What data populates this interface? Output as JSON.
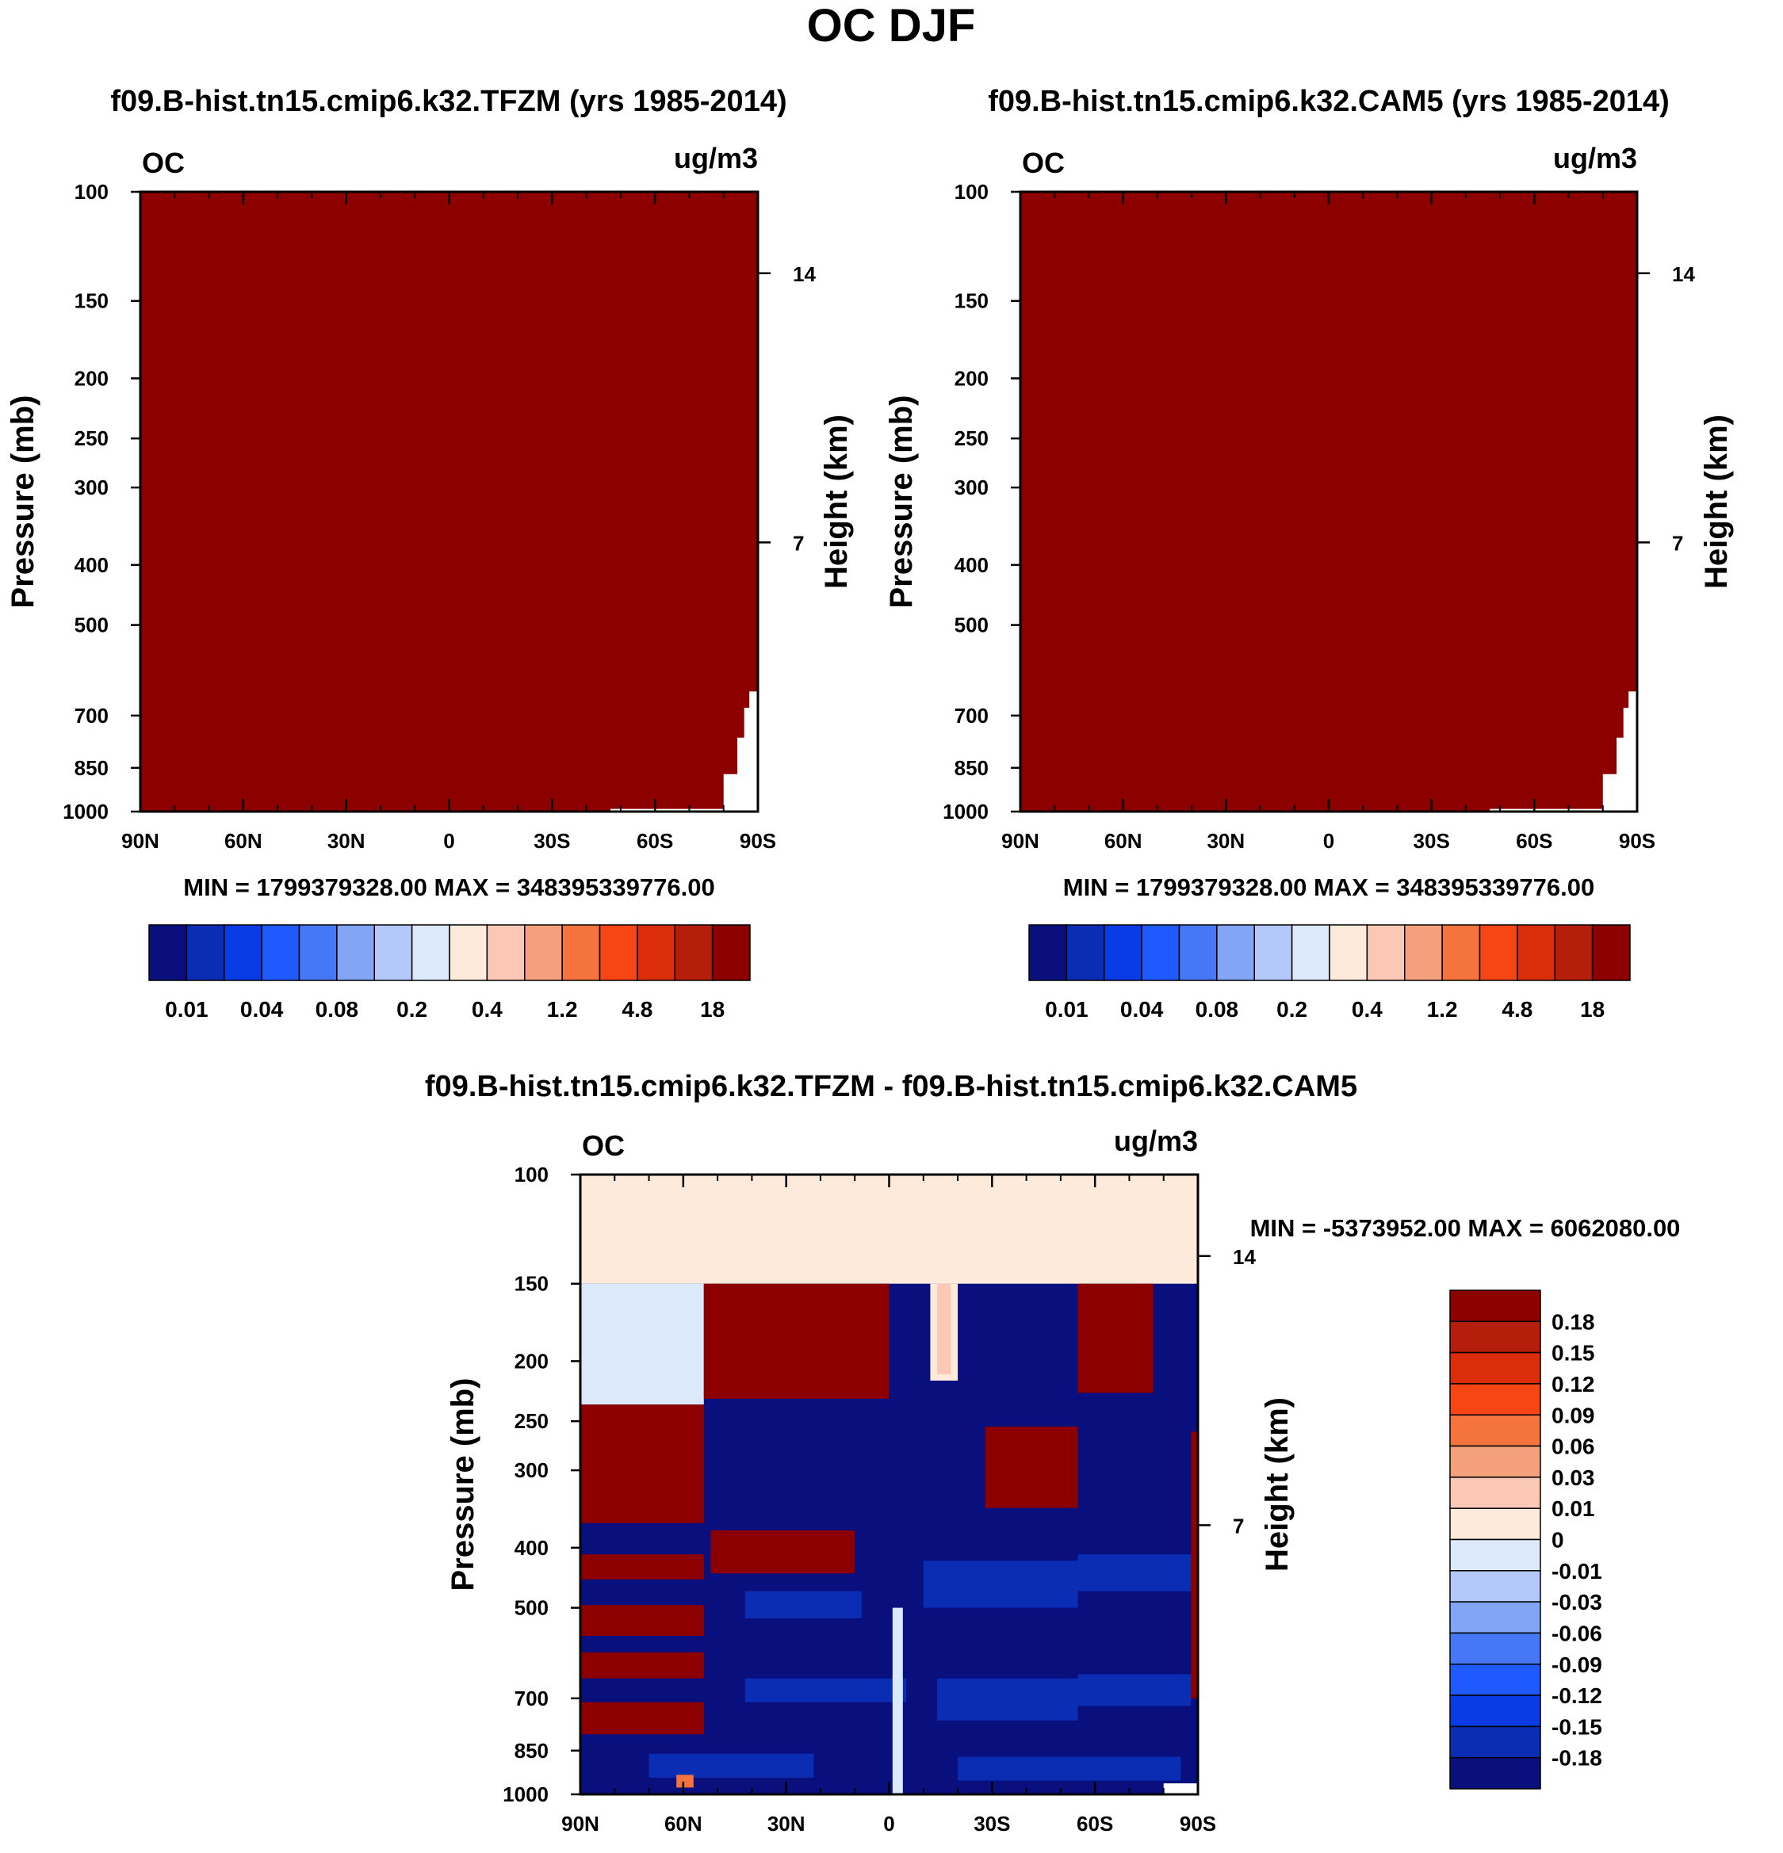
{
  "page_title": "OC DJF",
  "chart_data": [
    {
      "type": "heatmap",
      "title": "f09.B-hist.tn15.cmip6.k32.TFZM (yrs 1985-2014)",
      "corner_left": "OC",
      "corner_right": "ug/m3",
      "ylabel": "Pressure (mb)",
      "ylabel_right": "Height (km)",
      "x_ticks": [
        "90N",
        "60N",
        "30N",
        "0",
        "30S",
        "60S",
        "90S"
      ],
      "y_ticks": [
        "100",
        "150",
        "200",
        "250",
        "300",
        "400",
        "500",
        "700",
        "850",
        "1000"
      ],
      "y_right_ticks": [
        "14",
        "7"
      ],
      "stats": "MIN = 1799379328.00   MAX = 348395339776.00",
      "levels": [
        "0.01",
        "0.04",
        "0.08",
        "0.2",
        "0.4",
        "1.2",
        "4.8",
        "18"
      ],
      "field": "uniform dark red (all values above 18 ug/m3) with a small white region near 60S-90S below ~650 mb"
    },
    {
      "type": "heatmap",
      "title": "f09.B-hist.tn15.cmip6.k32.CAM5 (yrs 1985-2014)",
      "corner_left": "OC",
      "corner_right": "ug/m3",
      "ylabel": "Pressure (mb)",
      "ylabel_right": "Height (km)",
      "x_ticks": [
        "90N",
        "60N",
        "30N",
        "0",
        "30S",
        "60S",
        "90S"
      ],
      "y_ticks": [
        "100",
        "150",
        "200",
        "250",
        "300",
        "400",
        "500",
        "700",
        "850",
        "1000"
      ],
      "y_right_ticks": [
        "14",
        "7"
      ],
      "stats": "MIN = 1799379328.00   MAX = 348395339776.00",
      "levels": [
        "0.01",
        "0.04",
        "0.08",
        "0.2",
        "0.4",
        "1.2",
        "4.8",
        "18"
      ],
      "field": "uniform dark red (all values above 18 ug/m3) with a small white region near 60S-90S below ~650 mb"
    },
    {
      "type": "heatmap",
      "title": "f09.B-hist.tn15.cmip6.k32.TFZM - f09.B-hist.tn15.cmip6.k32.CAM5",
      "corner_left": "OC",
      "corner_right": "ug/m3",
      "ylabel": "Pressure (mb)",
      "ylabel_right": "Height (km)",
      "x_ticks": [
        "90N",
        "60N",
        "30N",
        "0",
        "30S",
        "60S",
        "90S"
      ],
      "y_ticks": [
        "100",
        "150",
        "200",
        "250",
        "300",
        "400",
        "500",
        "700",
        "850",
        "1000"
      ],
      "y_right_ticks": [
        "14",
        "7"
      ],
      "stats": "MIN = -5373952.00  MAX = 6062080.00",
      "levels": [
        "0.18",
        "0.15",
        "0.12",
        "0.09",
        "0.06",
        "0.03",
        "0.01",
        "0",
        "-0.01",
        "-0.03",
        "-0.06",
        "-0.09",
        "-0.12",
        "-0.15",
        "-0.18"
      ],
      "field": "difference field: near-zero positive band 100-150 mb; mixed strong positive (dark red) and strong negative (dark blue) banded layers below 150 mb"
    }
  ],
  "colors": {
    "seq": [
      "#0a0f7e",
      "#0a2db4",
      "#0a3ce6",
      "#1e5aff",
      "#4678f5",
      "#82a5f5",
      "#b4c8fa",
      "#dce9fa",
      "#fdeadb",
      "#fac8b4",
      "#f5a07d",
      "#f5733c",
      "#f54614",
      "#dc2d0a",
      "#b41e0a",
      "#8c0000"
    ],
    "div": [
      "#8c0000",
      "#b41e0a",
      "#dc2d0a",
      "#f54614",
      "#f5733c",
      "#f5a07d",
      "#fac8b4",
      "#fdeadb",
      "#dce9fa",
      "#b4c8fa",
      "#82a5f5",
      "#4678f5",
      "#1e5aff",
      "#0a3ce6",
      "#0a2db4",
      "#0a0f7e"
    ]
  }
}
